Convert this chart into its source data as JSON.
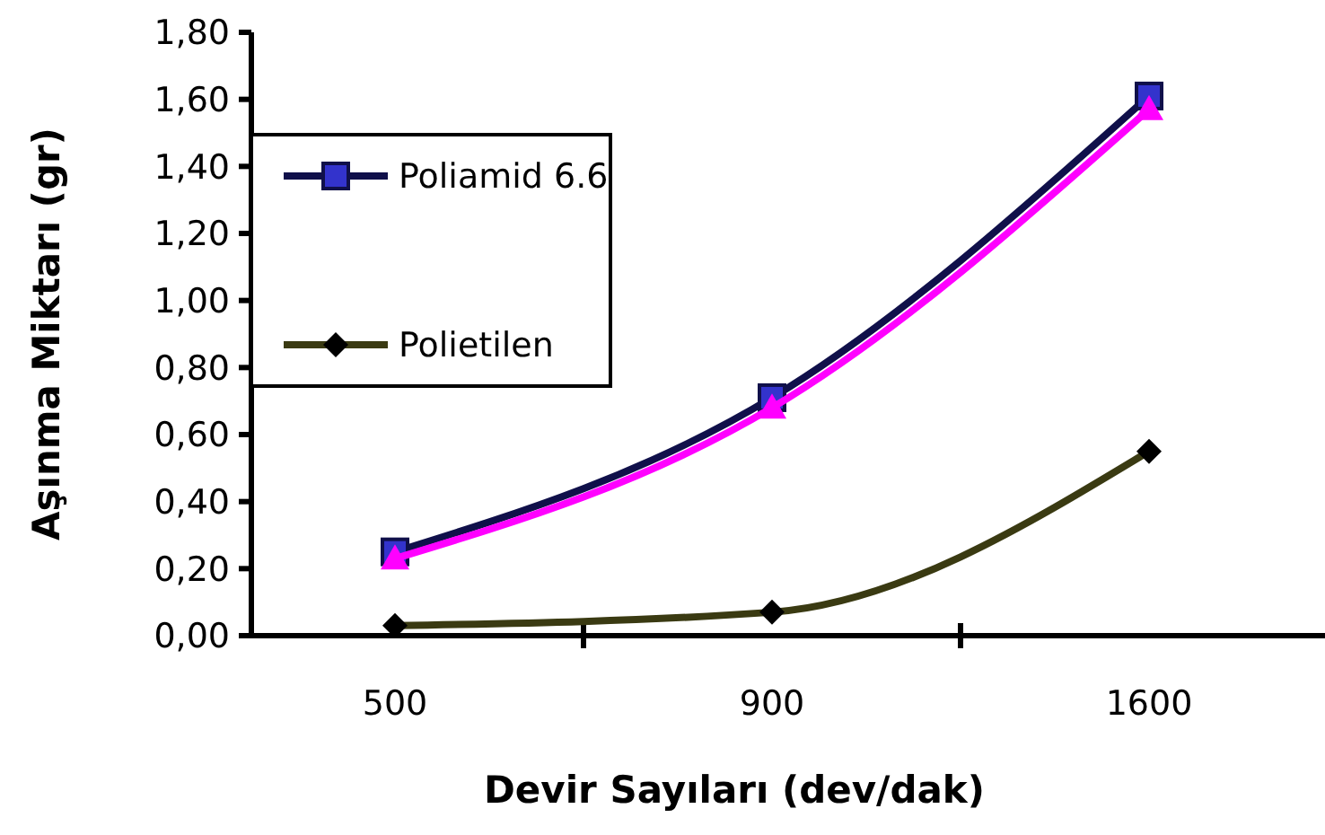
{
  "chart_data": {
    "type": "line",
    "xlabel": "Devir Sayıları (dev/dak)",
    "ylabel": "Aşınma Miktarı (gr)",
    "categories": [
      "500",
      "900",
      "1600"
    ],
    "ylim": [
      0,
      1.8
    ],
    "yticks": [
      {
        "value": 0,
        "label": "0,00"
      },
      {
        "value": 0.2,
        "label": "0,20"
      },
      {
        "value": 0.4,
        "label": "0,40"
      },
      {
        "value": 0.6,
        "label": "0,60"
      },
      {
        "value": 0.8,
        "label": "0,80"
      },
      {
        "value": 1,
        "label": "1,00"
      },
      {
        "value": 1.2,
        "label": "1,20"
      },
      {
        "value": 1.4,
        "label": "1,40"
      },
      {
        "value": 1.6,
        "label": "1,60"
      },
      {
        "value": 1.8,
        "label": "1,80"
      }
    ],
    "legend": "top left",
    "grid": false,
    "line_style": "solid",
    "series": [
      {
        "name": "Poliamid 6.6",
        "color": "#10104a",
        "marker": "square",
        "values": [
          0.25,
          0.71,
          1.61
        ]
      },
      {
        "color": "#ff00ff",
        "marker": "triangle",
        "values": [
          0.23,
          0.68,
          1.57
        ]
      },
      {
        "name": "Polietilen",
        "color": "#3a3a12",
        "marker": "diamond",
        "values": [
          0.03,
          0.07,
          0.55
        ]
      }
    ]
  }
}
